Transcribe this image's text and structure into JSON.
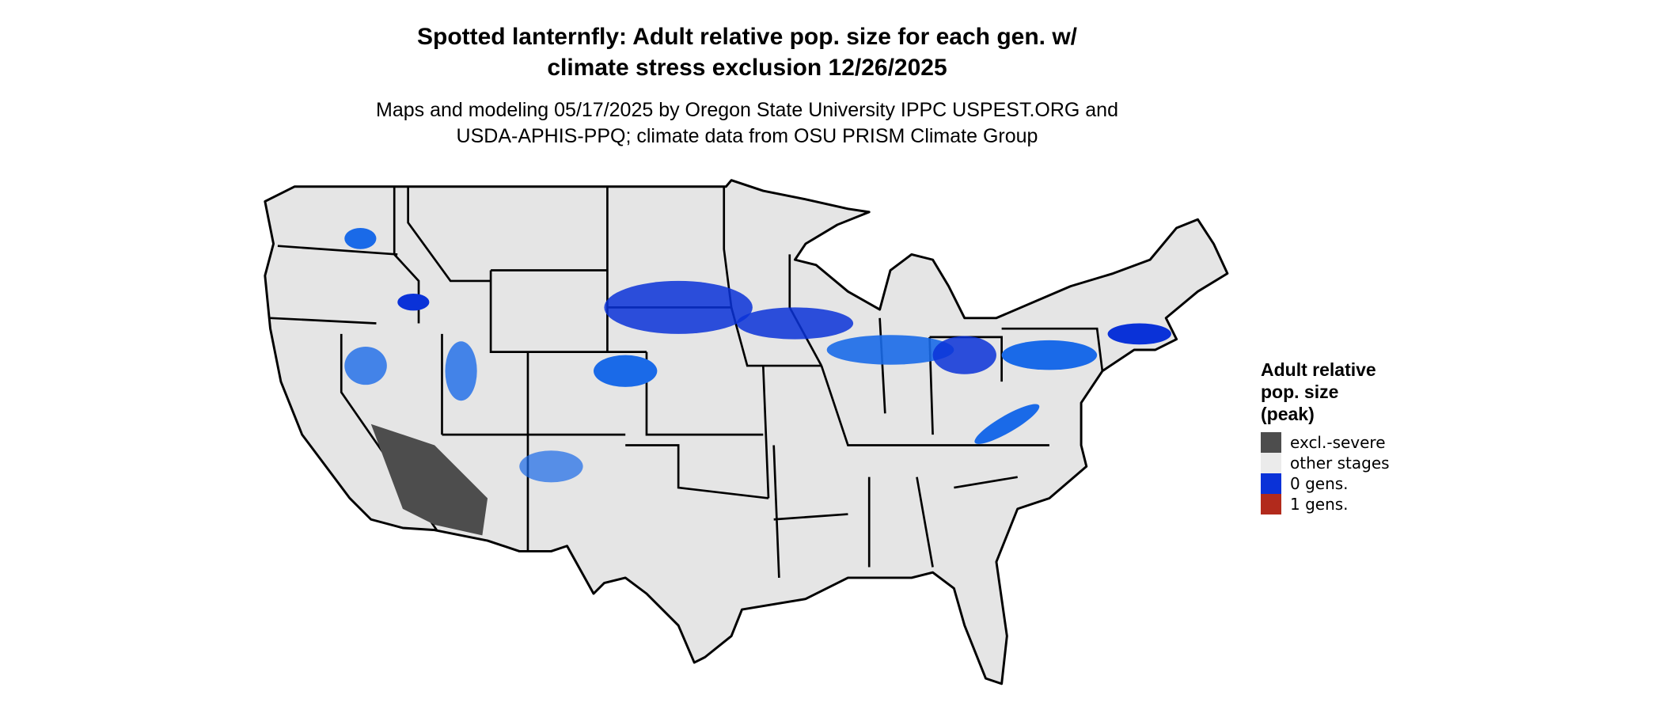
{
  "header": {
    "title_lines": [
      "Spotted lanternfly: Adult relative pop. size for each gen. w/",
      "climate stress exclusion 12/26/2025"
    ],
    "subtitle_lines": [
      "Maps and modeling 05/17/2025 by Oregon State University IPPC USPEST.ORG and",
      "USDA-APHIS-PPQ; climate data from OSU PRISM Climate Group"
    ]
  },
  "legend": {
    "title_lines": [
      "Adult relative",
      "pop. size",
      "(peak)"
    ],
    "items": [
      {
        "label": "excl.-severe",
        "color": "#4d4d4d"
      },
      {
        "label": "other stages",
        "color": "#ebebeb"
      },
      {
        "label": "0 gens.",
        "color": "#0a32d8"
      },
      {
        "label": "1 gens.",
        "color": "#b22a1c"
      }
    ]
  }
}
